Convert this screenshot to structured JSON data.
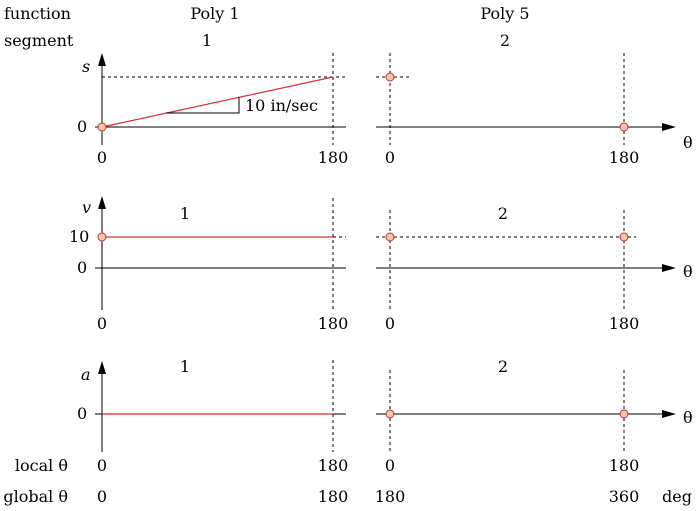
{
  "labels": {
    "function": "function",
    "segment": "segment",
    "local_theta": "local θ",
    "global_theta": "global θ",
    "deg": "deg"
  },
  "functions": [
    "Poly 1",
    "Poly 5"
  ],
  "segments": [
    "1",
    "2"
  ],
  "plots": {
    "s": {
      "y_label": "s",
      "y_ticks": [
        "0"
      ],
      "x_ticks": [
        "0",
        "180",
        "0",
        "180"
      ],
      "theta_label": "θ",
      "slope_label": "10 in/sec"
    },
    "v": {
      "y_label": "v",
      "y_ticks": [
        "10",
        "0"
      ],
      "x_ticks": [
        "0",
        "180",
        "0",
        "180"
      ],
      "theta_label": "θ",
      "segment_labels": [
        "1",
        "2"
      ]
    },
    "a": {
      "y_label": "a",
      "y_ticks": [
        "0"
      ],
      "x_ticks": [
        "0",
        "180",
        "0",
        "180"
      ],
      "theta_label": "θ",
      "segment_labels": [
        "1",
        "2"
      ]
    }
  },
  "global_theta_ticks": [
    "0",
    "180",
    "180",
    "360"
  ],
  "colors": {
    "curve": "#d0303a",
    "point_fill": "#f7c4b4",
    "point_stroke": "#c0392b",
    "axis": "#000000"
  }
}
